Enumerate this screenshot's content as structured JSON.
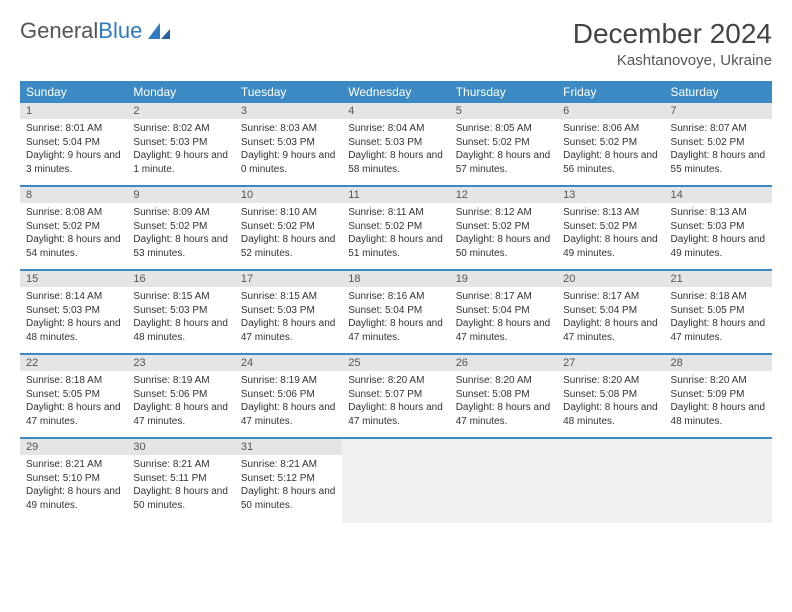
{
  "logo": {
    "text1": "General",
    "text2": "Blue"
  },
  "header": {
    "month": "December 2024",
    "location": "Kashtanovoye, Ukraine"
  },
  "colors": {
    "header_bg": "#3b8ac4",
    "header_fg": "#ffffff",
    "daynum_bg": "#e4e5e6",
    "row_divider": "#3b8ac4",
    "logo_gray": "#555555",
    "logo_blue": "#2f7ac0"
  },
  "weekdays": [
    "Sunday",
    "Monday",
    "Tuesday",
    "Wednesday",
    "Thursday",
    "Friday",
    "Saturday"
  ],
  "grid": {
    "rows": 5,
    "cols": 7
  },
  "cells": [
    {
      "n": "1",
      "sr": "Sunrise: 8:01 AM",
      "ss": "Sunset: 5:04 PM",
      "dl": "Daylight: 9 hours and 3 minutes."
    },
    {
      "n": "2",
      "sr": "Sunrise: 8:02 AM",
      "ss": "Sunset: 5:03 PM",
      "dl": "Daylight: 9 hours and 1 minute."
    },
    {
      "n": "3",
      "sr": "Sunrise: 8:03 AM",
      "ss": "Sunset: 5:03 PM",
      "dl": "Daylight: 9 hours and 0 minutes."
    },
    {
      "n": "4",
      "sr": "Sunrise: 8:04 AM",
      "ss": "Sunset: 5:03 PM",
      "dl": "Daylight: 8 hours and 58 minutes."
    },
    {
      "n": "5",
      "sr": "Sunrise: 8:05 AM",
      "ss": "Sunset: 5:02 PM",
      "dl": "Daylight: 8 hours and 57 minutes."
    },
    {
      "n": "6",
      "sr": "Sunrise: 8:06 AM",
      "ss": "Sunset: 5:02 PM",
      "dl": "Daylight: 8 hours and 56 minutes."
    },
    {
      "n": "7",
      "sr": "Sunrise: 8:07 AM",
      "ss": "Sunset: 5:02 PM",
      "dl": "Daylight: 8 hours and 55 minutes."
    },
    {
      "n": "8",
      "sr": "Sunrise: 8:08 AM",
      "ss": "Sunset: 5:02 PM",
      "dl": "Daylight: 8 hours and 54 minutes."
    },
    {
      "n": "9",
      "sr": "Sunrise: 8:09 AM",
      "ss": "Sunset: 5:02 PM",
      "dl": "Daylight: 8 hours and 53 minutes."
    },
    {
      "n": "10",
      "sr": "Sunrise: 8:10 AM",
      "ss": "Sunset: 5:02 PM",
      "dl": "Daylight: 8 hours and 52 minutes."
    },
    {
      "n": "11",
      "sr": "Sunrise: 8:11 AM",
      "ss": "Sunset: 5:02 PM",
      "dl": "Daylight: 8 hours and 51 minutes."
    },
    {
      "n": "12",
      "sr": "Sunrise: 8:12 AM",
      "ss": "Sunset: 5:02 PM",
      "dl": "Daylight: 8 hours and 50 minutes."
    },
    {
      "n": "13",
      "sr": "Sunrise: 8:13 AM",
      "ss": "Sunset: 5:02 PM",
      "dl": "Daylight: 8 hours and 49 minutes."
    },
    {
      "n": "14",
      "sr": "Sunrise: 8:13 AM",
      "ss": "Sunset: 5:03 PM",
      "dl": "Daylight: 8 hours and 49 minutes."
    },
    {
      "n": "15",
      "sr": "Sunrise: 8:14 AM",
      "ss": "Sunset: 5:03 PM",
      "dl": "Daylight: 8 hours and 48 minutes."
    },
    {
      "n": "16",
      "sr": "Sunrise: 8:15 AM",
      "ss": "Sunset: 5:03 PM",
      "dl": "Daylight: 8 hours and 48 minutes."
    },
    {
      "n": "17",
      "sr": "Sunrise: 8:15 AM",
      "ss": "Sunset: 5:03 PM",
      "dl": "Daylight: 8 hours and 47 minutes."
    },
    {
      "n": "18",
      "sr": "Sunrise: 8:16 AM",
      "ss": "Sunset: 5:04 PM",
      "dl": "Daylight: 8 hours and 47 minutes."
    },
    {
      "n": "19",
      "sr": "Sunrise: 8:17 AM",
      "ss": "Sunset: 5:04 PM",
      "dl": "Daylight: 8 hours and 47 minutes."
    },
    {
      "n": "20",
      "sr": "Sunrise: 8:17 AM",
      "ss": "Sunset: 5:04 PM",
      "dl": "Daylight: 8 hours and 47 minutes."
    },
    {
      "n": "21",
      "sr": "Sunrise: 8:18 AM",
      "ss": "Sunset: 5:05 PM",
      "dl": "Daylight: 8 hours and 47 minutes."
    },
    {
      "n": "22",
      "sr": "Sunrise: 8:18 AM",
      "ss": "Sunset: 5:05 PM",
      "dl": "Daylight: 8 hours and 47 minutes."
    },
    {
      "n": "23",
      "sr": "Sunrise: 8:19 AM",
      "ss": "Sunset: 5:06 PM",
      "dl": "Daylight: 8 hours and 47 minutes."
    },
    {
      "n": "24",
      "sr": "Sunrise: 8:19 AM",
      "ss": "Sunset: 5:06 PM",
      "dl": "Daylight: 8 hours and 47 minutes."
    },
    {
      "n": "25",
      "sr": "Sunrise: 8:20 AM",
      "ss": "Sunset: 5:07 PM",
      "dl": "Daylight: 8 hours and 47 minutes."
    },
    {
      "n": "26",
      "sr": "Sunrise: 8:20 AM",
      "ss": "Sunset: 5:08 PM",
      "dl": "Daylight: 8 hours and 47 minutes."
    },
    {
      "n": "27",
      "sr": "Sunrise: 8:20 AM",
      "ss": "Sunset: 5:08 PM",
      "dl": "Daylight: 8 hours and 48 minutes."
    },
    {
      "n": "28",
      "sr": "Sunrise: 8:20 AM",
      "ss": "Sunset: 5:09 PM",
      "dl": "Daylight: 8 hours and 48 minutes."
    },
    {
      "n": "29",
      "sr": "Sunrise: 8:21 AM",
      "ss": "Sunset: 5:10 PM",
      "dl": "Daylight: 8 hours and 49 minutes."
    },
    {
      "n": "30",
      "sr": "Sunrise: 8:21 AM",
      "ss": "Sunset: 5:11 PM",
      "dl": "Daylight: 8 hours and 50 minutes."
    },
    {
      "n": "31",
      "sr": "Sunrise: 8:21 AM",
      "ss": "Sunset: 5:12 PM",
      "dl": "Daylight: 8 hours and 50 minutes."
    },
    {
      "empty": true
    },
    {
      "empty": true
    },
    {
      "empty": true
    },
    {
      "empty": true
    }
  ]
}
